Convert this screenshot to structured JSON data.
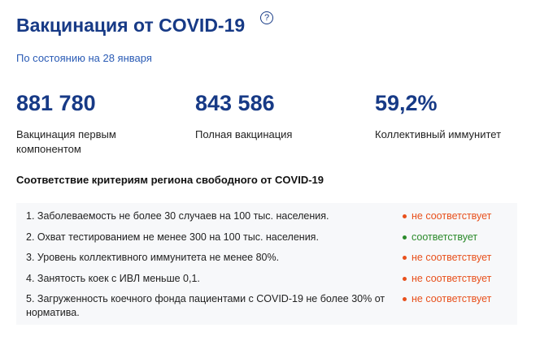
{
  "header": {
    "title": "Вакцинация от COVID-19",
    "help": "?",
    "subtitle": "По состоянию на 28 января"
  },
  "stats": [
    {
      "value": "881 780",
      "label": "Вакцинация первым компонентом"
    },
    {
      "value": "843 586",
      "label": "Полная вакцинация"
    },
    {
      "value": "59,2%",
      "label": "Коллективный иммунитет"
    }
  ],
  "criteria": {
    "title": "Соответствие критериям региона свободного от COVID-19",
    "items": [
      {
        "text": "1. Заболеваемость не более 30 случаев на 100 тыс. населения.",
        "status": "не соответствует",
        "color": "#e8501c"
      },
      {
        "text": "2. Охват тестированием не менее 300 на 100 тыс. населения.",
        "status": "соответствует",
        "color": "#2b8a2b"
      },
      {
        "text": "3. Уровень коллективного иммунитета не менее 80%.",
        "status": "не соответствует",
        "color": "#e8501c"
      },
      {
        "text": "4. Занятость коек с ИВЛ меньше 0,1.",
        "status": "не соответствует",
        "color": "#e8501c"
      },
      {
        "text": "5. Загруженность коечного фонда пациентами с COVID-19 не более 30% от норматива.",
        "status": "не соответствует",
        "color": "#e8501c"
      }
    ]
  }
}
